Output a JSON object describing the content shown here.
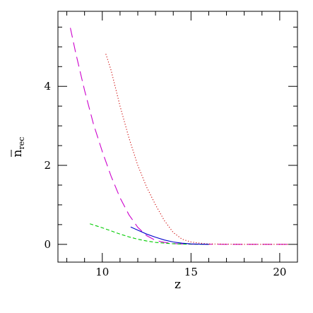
{
  "chart_data": {
    "type": "line",
    "xlabel": "z",
    "ylabel_main": "n",
    "ylabel_sub": "rec",
    "xlim": [
      7.5,
      21
    ],
    "ylim": [
      -0.45,
      5.9
    ],
    "x_ticks": [
      10,
      15,
      20
    ],
    "x_minor_step": 1,
    "y_ticks": [
      0,
      2,
      4
    ],
    "y_minor_step": 0.5,
    "grid": false,
    "series": [
      {
        "color": "#cc00cc",
        "dash": "long-dash",
        "x": [
          8.2,
          8.5,
          9.0,
          9.5,
          10.0,
          10.5,
          11.0,
          11.5,
          12.0,
          12.5,
          13.0,
          13.5,
          14.0,
          14.5,
          15.0,
          16.0,
          17.0,
          18.0,
          19.0,
          20.0,
          20.5
        ],
        "y": [
          5.48,
          4.85,
          3.9,
          3.05,
          2.35,
          1.72,
          1.18,
          0.75,
          0.43,
          0.22,
          0.1,
          0.05,
          0.02,
          0.01,
          0.005,
          0.002,
          0.001,
          0.0,
          0.0,
          0.0,
          0.0
        ]
      },
      {
        "color": "#cc0000",
        "dash": "dotted",
        "x": [
          10.2,
          10.5,
          11.0,
          11.5,
          12.0,
          12.5,
          13.0,
          13.5,
          14.0,
          14.5,
          15.0,
          15.5,
          16.0,
          17.0,
          18.0,
          19.0,
          20.0,
          20.5
        ],
        "y": [
          4.82,
          4.4,
          3.5,
          2.7,
          2.0,
          1.45,
          1.0,
          0.6,
          0.3,
          0.13,
          0.06,
          0.03,
          0.01,
          0.005,
          0.0,
          0.0,
          0.0,
          0.0
        ]
      },
      {
        "color": "#00cc00",
        "dash": "short-dash",
        "x": [
          9.3,
          10.0,
          10.5,
          11.0,
          11.5,
          12.0,
          12.5,
          13.0,
          13.5,
          14.0,
          14.5,
          15.0,
          15.5,
          16.0
        ],
        "y": [
          0.52,
          0.42,
          0.34,
          0.26,
          0.19,
          0.13,
          0.085,
          0.05,
          0.03,
          0.015,
          0.008,
          0.004,
          0.002,
          0.0
        ]
      },
      {
        "color": "#0000cc",
        "dash": "solid",
        "x": [
          11.6,
          12.0,
          12.5,
          13.0,
          13.5,
          14.0,
          14.5,
          15.0,
          15.5,
          16.0
        ],
        "y": [
          0.44,
          0.36,
          0.26,
          0.18,
          0.11,
          0.06,
          0.03,
          0.012,
          0.005,
          0.0
        ]
      }
    ]
  }
}
